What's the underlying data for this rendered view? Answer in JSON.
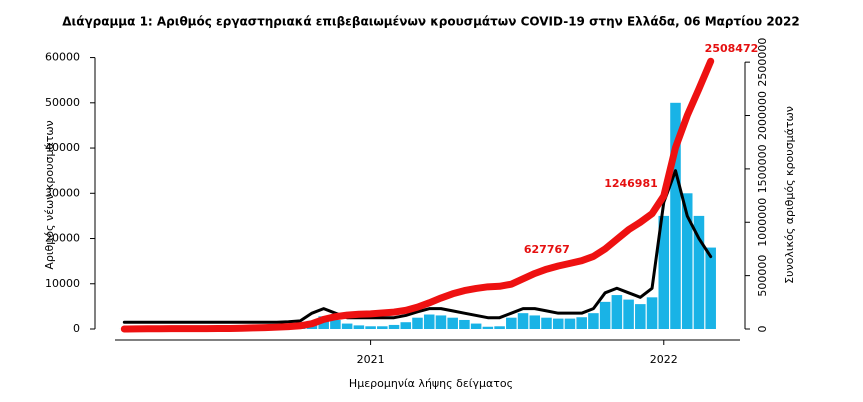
{
  "chart_data": {
    "type": "bar",
    "title": "Διάγραμμα 1: Αριθμός εργαστηριακά επιβεβαιωμένων κρουσμάτων COVID-19 στην Ελλάδα, 06 Μαρτίου 2022",
    "x_label": "Ημερομηνία λήψης δείγματος",
    "y_label": "Αριθμός νέων κρουσμάτων",
    "y2_label": "Συνολικός αριθμός κρουσμάτων",
    "x": [
      2020.16,
      2020.2,
      2020.24,
      2020.28,
      2020.32,
      2020.36,
      2020.4,
      2020.44,
      2020.48,
      2020.52,
      2020.56,
      2020.6,
      2020.64,
      2020.68,
      2020.72,
      2020.76,
      2020.8,
      2020.84,
      2020.88,
      2020.92,
      2020.96,
      2021.0,
      2021.04,
      2021.08,
      2021.12,
      2021.16,
      2021.2,
      2021.24,
      2021.28,
      2021.32,
      2021.36,
      2021.4,
      2021.44,
      2021.48,
      2021.52,
      2021.56,
      2021.6,
      2021.64,
      2021.68,
      2021.72,
      2021.76,
      2021.8,
      2021.84,
      2021.88,
      2021.92,
      2021.96,
      2022.0,
      2022.04,
      2022.08,
      2022.12,
      2022.16
    ],
    "series": [
      {
        "color": "#19b3e6",
        "kind": "bar",
        "values": [
          10,
          80,
          60,
          20,
          10,
          10,
          20,
          30,
          20,
          40,
          120,
          200,
          250,
          300,
          400,
          800,
          1800,
          2800,
          2000,
          1200,
          800,
          600,
          600,
          900,
          1500,
          2500,
          3200,
          3000,
          2500,
          2000,
          1200,
          500,
          600,
          2500,
          3500,
          3000,
          2500,
          2300,
          2300,
          2600,
          3500,
          6000,
          7500,
          6500,
          5500,
          7000,
          25000,
          50000,
          30000,
          25000,
          18000
        ]
      },
      {
        "color": "#000000",
        "kind": "line",
        "values": [
          1500,
          1500,
          1500,
          1500,
          1500,
          1500,
          1500,
          1500,
          1500,
          1500,
          1500,
          1500,
          1500,
          1500,
          1600,
          1800,
          3500,
          4500,
          3500,
          2500,
          2500,
          2500,
          2500,
          2500,
          3000,
          3800,
          4500,
          4500,
          4000,
          3500,
          3000,
          2500,
          2500,
          3500,
          4500,
          4500,
          4000,
          3500,
          3500,
          3500,
          4500,
          8000,
          9000,
          8000,
          7000,
          9000,
          28000,
          35000,
          25000,
          20000,
          16000
        ]
      },
      {
        "color": "#ee1111",
        "kind": "line",
        "axis": "y2",
        "values": [
          0,
          1000,
          2500,
          2800,
          3000,
          3100,
          3300,
          3700,
          4200,
          5000,
          7000,
          10000,
          13000,
          17000,
          22000,
          30000,
          50000,
          90000,
          115000,
          130000,
          138000,
          142000,
          150000,
          158000,
          175000,
          205000,
          245000,
          290000,
          330000,
          360000,
          380000,
          395000,
          400000,
          420000,
          470000,
          520000,
          560000,
          590000,
          615000,
          640000,
          680000,
          750000,
          840000,
          930000,
          1000000,
          1080000,
          1246981,
          1700000,
          2000000,
          2250000,
          2508472
        ]
      }
    ],
    "annotations": [
      {
        "text": "627767",
        "x": 2021.7,
        "y": 627767
      },
      {
        "text": "1246981",
        "x": 2022.0,
        "y": 1246981
      },
      {
        "text": "2508472",
        "x": 2022.16,
        "y": 2508472
      }
    ],
    "xlim": [
      2020.06,
      2022.26
    ],
    "xticks": [
      2021,
      2022
    ],
    "ylim": [
      0,
      63000
    ],
    "yticks": [
      0,
      10000,
      20000,
      30000,
      40000,
      50000,
      60000
    ],
    "y2lim": [
      0,
      2670000
    ],
    "y2ticks": [
      0,
      500000,
      1000000,
      1500000,
      2000000,
      2500000
    ]
  }
}
